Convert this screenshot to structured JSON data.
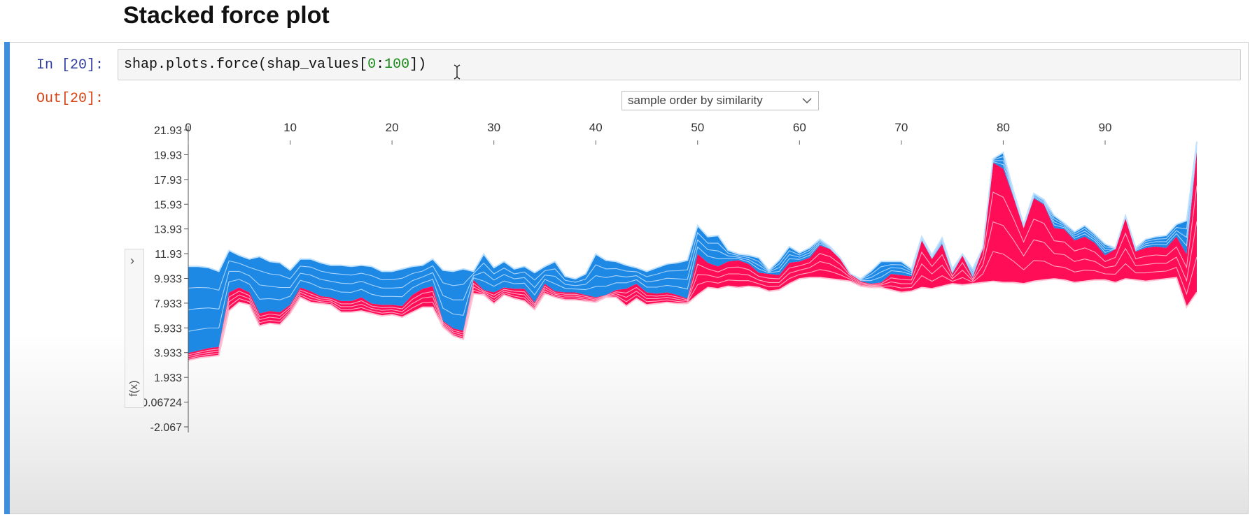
{
  "heading": "Stacked force plot",
  "cell": {
    "in_prompt": "In [20]:",
    "out_prompt": "Out[20]:",
    "code": {
      "prefix": "shap.plots.force(shap_values[",
      "num_a": "0",
      "colon": ":",
      "num_b": "100",
      "suffix": "])"
    }
  },
  "order_select": {
    "selected": "sample order by similarity",
    "icon": "chevron-down-icon"
  },
  "side_toggle": {
    "icon": "chevron-right-icon",
    "glyph": "›",
    "label": "f(x)"
  },
  "colors": {
    "positive": "#ff0d57",
    "negative": "#1e88e5",
    "band_line_pos": "#ffc3d5",
    "band_line_neg": "#bfe1ff",
    "cell_accent": "#3f8fdc"
  },
  "chart_data": {
    "type": "area",
    "x_ticks": [
      0,
      10,
      20,
      30,
      40,
      50,
      60,
      70,
      80,
      90
    ],
    "y_tick_labels": [
      "21.93",
      "19.93",
      "17.93",
      "15.93",
      "13.93",
      "11.93",
      "9.933",
      "7.933",
      "5.933",
      "3.933",
      "1.933",
      "-0.06724",
      "-2.067"
    ],
    "y_ticks": [
      21.93,
      19.93,
      17.93,
      15.93,
      13.93,
      11.93,
      9.933,
      7.933,
      5.933,
      3.933,
      1.933,
      -0.06724,
      -2.067
    ],
    "xlim": [
      0,
      99
    ],
    "ylim": [
      -2.067,
      21.93
    ],
    "ylabel": "f(x)",
    "x": [
      0,
      1,
      2,
      3,
      4,
      5,
      6,
      7,
      8,
      9,
      10,
      11,
      12,
      13,
      14,
      15,
      16,
      17,
      18,
      19,
      20,
      21,
      22,
      23,
      24,
      25,
      26,
      27,
      28,
      29,
      30,
      31,
      32,
      33,
      34,
      35,
      36,
      37,
      38,
      39,
      40,
      41,
      42,
      43,
      44,
      45,
      46,
      47,
      48,
      49,
      50,
      51,
      52,
      53,
      54,
      55,
      56,
      57,
      58,
      59,
      60,
      61,
      62,
      63,
      64,
      65,
      66,
      67,
      68,
      69,
      70,
      71,
      72,
      73,
      74,
      75,
      76,
      77,
      78,
      79,
      80,
      81,
      82,
      83,
      84,
      85,
      86,
      87,
      88,
      89,
      90,
      91,
      92,
      93,
      94,
      95,
      96,
      97,
      98,
      99
    ],
    "base": [
      3.3,
      3.5,
      3.6,
      3.7,
      7.3,
      8.0,
      7.8,
      6.1,
      6.3,
      6.2,
      7.1,
      8.4,
      8.0,
      7.9,
      7.8,
      7.2,
      7.2,
      7.3,
      7.1,
      6.9,
      7.0,
      6.8,
      7.2,
      7.6,
      7.6,
      6.0,
      5.3,
      5.0,
      8.7,
      8.6,
      7.9,
      8.6,
      8.3,
      8.1,
      7.4,
      8.7,
      8.4,
      8.2,
      8.2,
      8.1,
      8.0,
      8.4,
      8.4,
      7.7,
      8.3,
      7.8,
      7.9,
      8.0,
      7.9,
      7.9,
      8.6,
      9.2,
      9.1,
      9.3,
      9.2,
      9.3,
      9.2,
      8.9,
      9.0,
      9.5,
      9.9,
      10.0,
      10.0,
      9.9,
      9.8,
      9.7,
      9.3,
      9.2,
      9.2,
      9.0,
      8.8,
      8.9,
      9.2,
      9.1,
      9.3,
      9.5,
      9.4,
      9.5,
      9.6,
      9.7,
      9.6,
      9.6,
      9.5,
      9.7,
      9.8,
      9.9,
      9.8,
      9.6,
      9.7,
      9.8,
      9.8,
      9.6,
      9.9,
      9.8,
      9.7,
      9.8,
      9.9,
      10.0,
      7.6,
      8.8
    ],
    "fx": [
      3.9,
      4.1,
      4.3,
      4.4,
      8.8,
      9.2,
      8.8,
      7.1,
      7.3,
      7.2,
      7.8,
      9.2,
      8.9,
      8.5,
      8.4,
      8.1,
      8.1,
      8.4,
      7.9,
      7.8,
      7.8,
      7.7,
      8.6,
      9.1,
      9.3,
      6.5,
      5.9,
      5.7,
      9.8,
      9.0,
      8.8,
      9.2,
      9.1,
      9.1,
      8.0,
      9.5,
      8.9,
      8.8,
      8.8,
      8.6,
      8.4,
      8.6,
      9.0,
      9.1,
      9.5,
      8.8,
      8.7,
      8.8,
      8.6,
      8.3,
      11.9,
      11.2,
      10.9,
      11.3,
      11.4,
      11.1,
      10.4,
      10.3,
      10.2,
      11.2,
      11.3,
      11.6,
      12.6,
      12.3,
      11.5,
      10.3,
      9.7,
      9.5,
      9.6,
      10.3,
      10.2,
      10.1,
      13.0,
      11.5,
      12.7,
      10.3,
      11.8,
      10.0,
      12.4,
      19.3,
      18.8,
      16.5,
      14.0,
      16.4,
      15.9,
      14.0,
      13.9,
      13.0,
      13.3,
      12.8,
      11.8,
      12.3,
      14.8,
      12.1,
      12.4,
      12.5,
      12.4,
      13.3,
      11.9,
      20.3
    ],
    "top": [
      10.9,
      10.9,
      10.8,
      10.5,
      12.2,
      11.8,
      11.5,
      11.7,
      11.3,
      11.2,
      10.6,
      11.5,
      11.5,
      11.2,
      11.0,
      11.0,
      10.9,
      11.0,
      10.9,
      10.5,
      10.5,
      10.7,
      10.9,
      11.0,
      11.5,
      10.6,
      10.5,
      10.7,
      10.5,
      11.9,
      10.8,
      11.3,
      10.7,
      10.9,
      10.4,
      10.9,
      11.3,
      10.1,
      9.9,
      10.3,
      11.9,
      11.4,
      11.3,
      11.0,
      10.8,
      10.5,
      10.8,
      11.1,
      11.2,
      11.4,
      14.2,
      13.3,
      13.4,
      12.2,
      11.9,
      11.8,
      11.6,
      10.6,
      11.4,
      12.5,
      12.0,
      12.4,
      13.1,
      12.5,
      11.6,
      10.3,
      9.9,
      10.5,
      11.3,
      11.3,
      11.3,
      10.7,
      13.3,
      11.8,
      13.2,
      10.7,
      11.9,
      10.7,
      12.4,
      19.6,
      20.1,
      17.0,
      14.3,
      16.8,
      16.3,
      15.0,
      14.4,
      13.7,
      14.2,
      13.5,
      12.7,
      12.4,
      15.0,
      12.4,
      13.1,
      13.3,
      13.4,
      14.3,
      14.6,
      21.0
    ]
  }
}
